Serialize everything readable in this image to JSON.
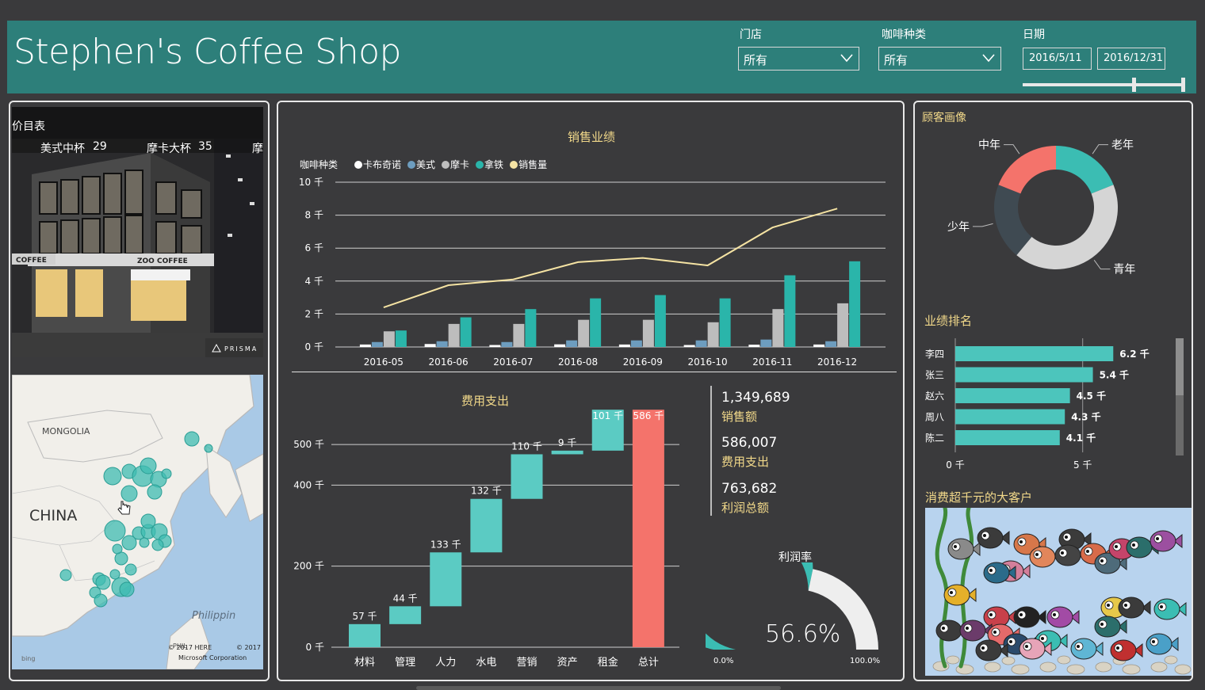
{
  "header": {
    "title": "Stephen's Coffee Shop",
    "store_label": "门店",
    "store_value": "所有",
    "coffee_label": "咖啡种类",
    "coffee_value": "所有",
    "date_label": "日期",
    "date_start": "2016/5/11",
    "date_end": "2016/12/31",
    "date_slider_fraction": [
      0.0,
      0.68,
      1.0
    ]
  },
  "menu": {
    "title": "价目表",
    "item1_name": "美式中杯",
    "item1_price": "29",
    "item2_name": "摩卡大杯",
    "item2_price": "35",
    "item3_name": "摩",
    "watermark": "PRISMA",
    "sign1": "COFFEE",
    "sign2": "ZOO COFFEE"
  },
  "map": {
    "label_mongolia": "MONGOLIA",
    "label_china": "CHINA",
    "label_philippines": "Philippin",
    "label_phil_small": "PHIL",
    "copyright1": "© 2017 HERE",
    "copyright2": "© 2017",
    "copyright3": "Microsoft Corporation",
    "bing": "bing"
  },
  "sales": {
    "title": "销售业绩",
    "legend_title": "咖啡种类",
    "legend": [
      {
        "name": "卡布奇诺",
        "color": "#ffffff"
      },
      {
        "name": "美式",
        "color": "#6d9dbf"
      },
      {
        "name": "摩卡",
        "color": "#bdbdbd"
      },
      {
        "name": "拿铁",
        "color": "#2ab5aa"
      },
      {
        "name": "销售量",
        "color": "#f5e3a3"
      }
    ]
  },
  "expense": {
    "title": "费用支出"
  },
  "kpis": [
    {
      "value": "1,349,689",
      "label": "销售额"
    },
    {
      "value": "586,007",
      "label": "费用支出"
    },
    {
      "value": "763,682",
      "label": "利润总额"
    }
  ],
  "gauge": {
    "title": "利润率",
    "value_text": "56.6%",
    "value": 0.566,
    "min_label": "0.0%",
    "max_label": "100.0%"
  },
  "customer": {
    "title": "顾客画像"
  },
  "ranking": {
    "title": "业绩排名"
  },
  "bigcustomer": {
    "title": "消费超千元的大客户"
  },
  "chart_data": [
    {
      "type": "bar",
      "title": "销售业绩",
      "categories": [
        "2016-05",
        "2016-06",
        "2016-07",
        "2016-08",
        "2016-09",
        "2016-10",
        "2016-11",
        "2016-12"
      ],
      "ylim": [
        0,
        10
      ],
      "yticks": [
        "0 千",
        "2 千",
        "4 千",
        "6 千",
        "8 千",
        "10 千"
      ],
      "grid": true,
      "legend_position": "top-left",
      "series": [
        {
          "name": "卡布奇诺",
          "values": [
            0.15,
            0.18,
            0.12,
            0.16,
            0.15,
            0.12,
            0.14,
            0.15
          ]
        },
        {
          "name": "美式",
          "values": [
            0.3,
            0.35,
            0.3,
            0.4,
            0.4,
            0.4,
            0.45,
            0.35
          ]
        },
        {
          "name": "摩卡",
          "values": [
            0.95,
            1.4,
            1.4,
            1.65,
            1.65,
            1.5,
            2.3,
            2.65
          ]
        },
        {
          "name": "拿铁",
          "values": [
            1.0,
            1.8,
            2.3,
            2.95,
            3.15,
            2.95,
            4.35,
            5.2
          ]
        },
        {
          "name": "销售量",
          "type": "line",
          "values": [
            2.4,
            3.75,
            4.1,
            5.15,
            5.4,
            4.95,
            7.25,
            8.4
          ]
        }
      ]
    },
    {
      "type": "waterfall",
      "title": "费用支出",
      "categories": [
        "材料",
        "管理",
        "人力",
        "水电",
        "营销",
        "资产",
        "租金",
        "总计"
      ],
      "values": [
        57,
        44,
        133,
        132,
        110,
        9,
        101,
        586
      ],
      "value_labels": [
        "57 千",
        "44 千",
        "133 千",
        "132 千",
        "110 千",
        "9 千",
        "101 千",
        "586 千"
      ],
      "ylim": [
        0,
        600
      ],
      "yticks": [
        "0 千",
        "200 千",
        "400 千",
        "500 千"
      ],
      "ytick_values": [
        0,
        200,
        400,
        500
      ],
      "grid": true,
      "colors": {
        "step": "#5bcbc3",
        "total": "#f4736b"
      }
    },
    {
      "type": "pie",
      "title": "顾客画像",
      "donut": true,
      "slices": [
        {
          "name": "老年",
          "value": 19,
          "color": "#3bbdb3"
        },
        {
          "name": "青年",
          "value": 42,
          "color": "#d5d5d5"
        },
        {
          "name": "少年",
          "value": 20,
          "color": "#3f4a52"
        },
        {
          "name": "中年",
          "value": 19,
          "color": "#f4736b"
        }
      ]
    },
    {
      "type": "bar",
      "orientation": "horizontal",
      "title": "业绩排名",
      "categories": [
        "李四",
        "张三",
        "赵六",
        "周八",
        "陈二"
      ],
      "values": [
        6.2,
        5.4,
        4.5,
        4.3,
        4.1
      ],
      "value_labels": [
        "6.2 千",
        "5.4 千",
        "4.5 千",
        "4.3 千",
        "4.1 千"
      ],
      "xlim": [
        0,
        7
      ],
      "xticks": [
        "0 千",
        "5 千"
      ],
      "xtick_values": [
        0,
        5
      ],
      "color": "#4cc5bc"
    }
  ]
}
